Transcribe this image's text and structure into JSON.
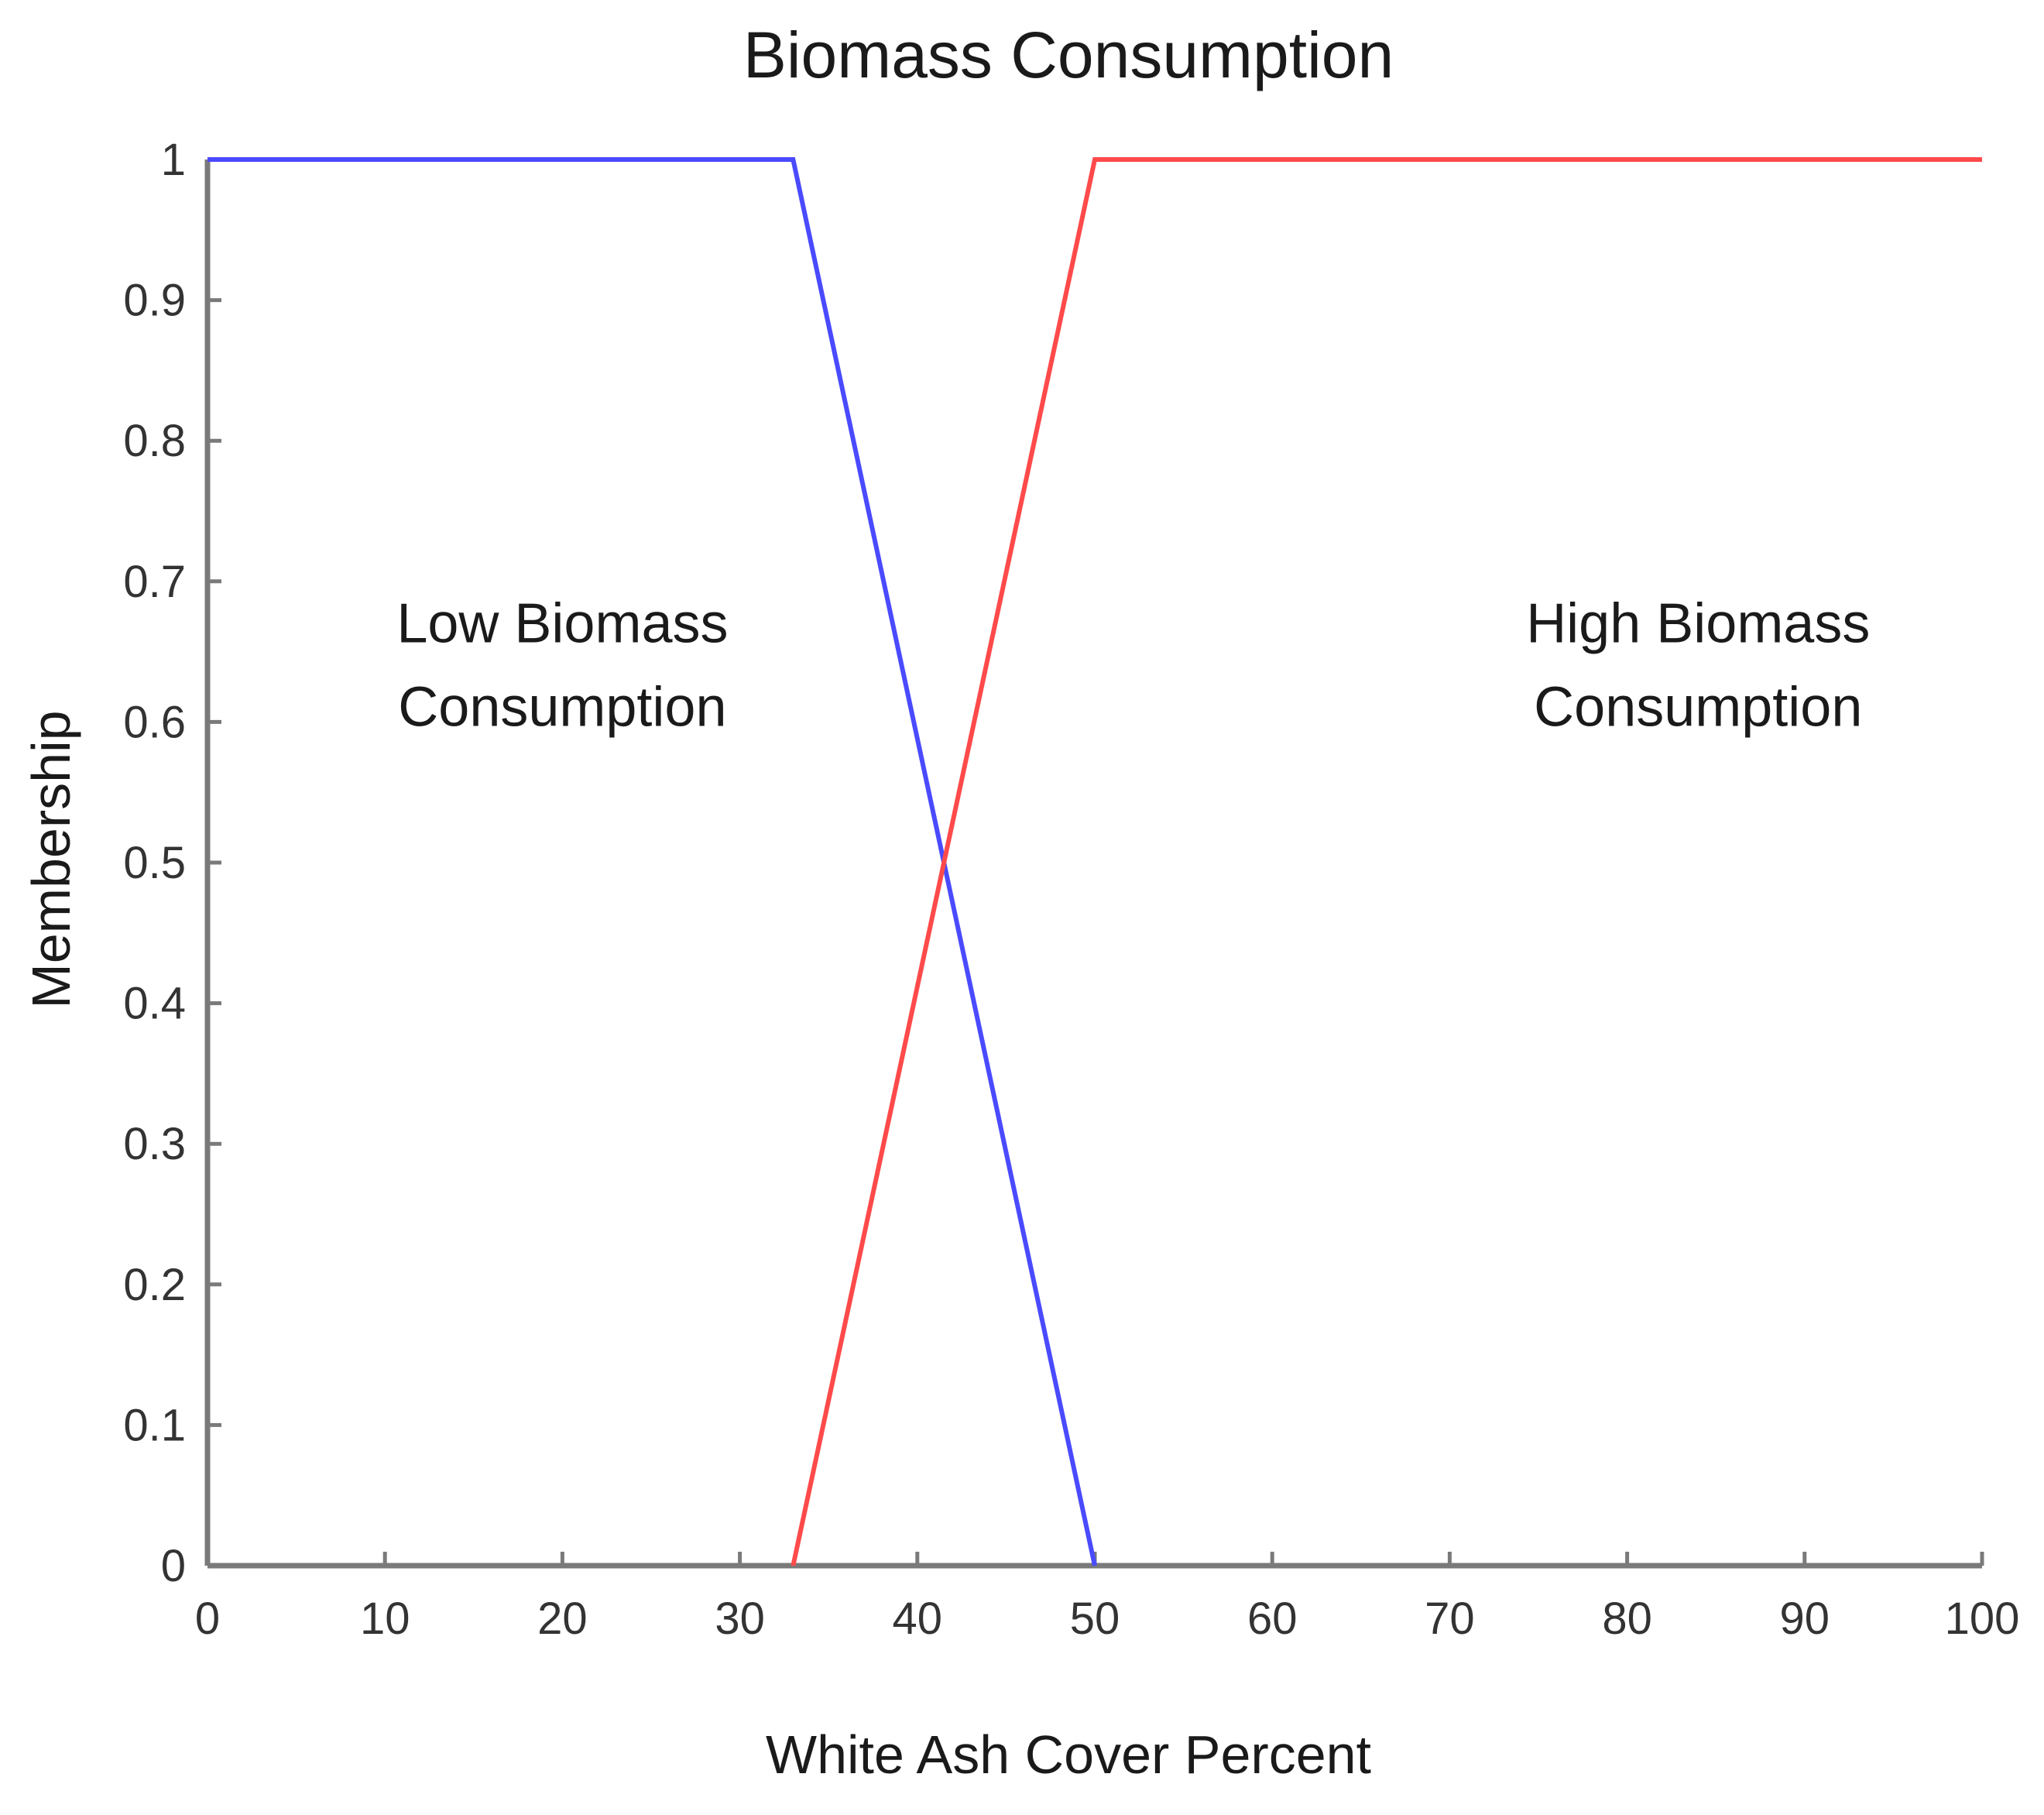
{
  "chart_data": {
    "type": "line",
    "title": "Biomass Consumption",
    "xlabel": "White Ash Cover Percent",
    "ylabel": "Membership",
    "xlim": [
      0,
      100
    ],
    "ylim": [
      0,
      1
    ],
    "x_ticks": [
      0,
      10,
      20,
      30,
      40,
      50,
      60,
      70,
      80,
      90,
      100
    ],
    "y_ticks": [
      0,
      0.1,
      0.2,
      0.3,
      0.4,
      0.5,
      0.6,
      0.7,
      0.8,
      0.9,
      1
    ],
    "x_tick_labels": [
      "0",
      "10",
      "20",
      "30",
      "40",
      "50",
      "60",
      "70",
      "80",
      "90",
      "100"
    ],
    "y_tick_labels": [
      "0",
      "0.1",
      "0.2",
      "0.3",
      "0.4",
      "0.5",
      "0.6",
      "0.7",
      "0.8",
      "0.9",
      "1"
    ],
    "grid": false,
    "legend": "none",
    "series": [
      {
        "color": "#4a4aff",
        "x": [
          0,
          33,
          50
        ],
        "y": [
          1,
          1,
          0
        ]
      },
      {
        "color": "#ff4a4a",
        "x": [
          33,
          50,
          100
        ],
        "y": [
          0,
          1,
          1
        ]
      }
    ],
    "annotations": [
      {
        "lines": [
          "Low Biomass",
          "Consumption"
        ],
        "x": 20,
        "y": 0.67
      },
      {
        "lines": [
          "High Biomass",
          "Consumption"
        ],
        "x": 84,
        "y": 0.67
      }
    ]
  }
}
